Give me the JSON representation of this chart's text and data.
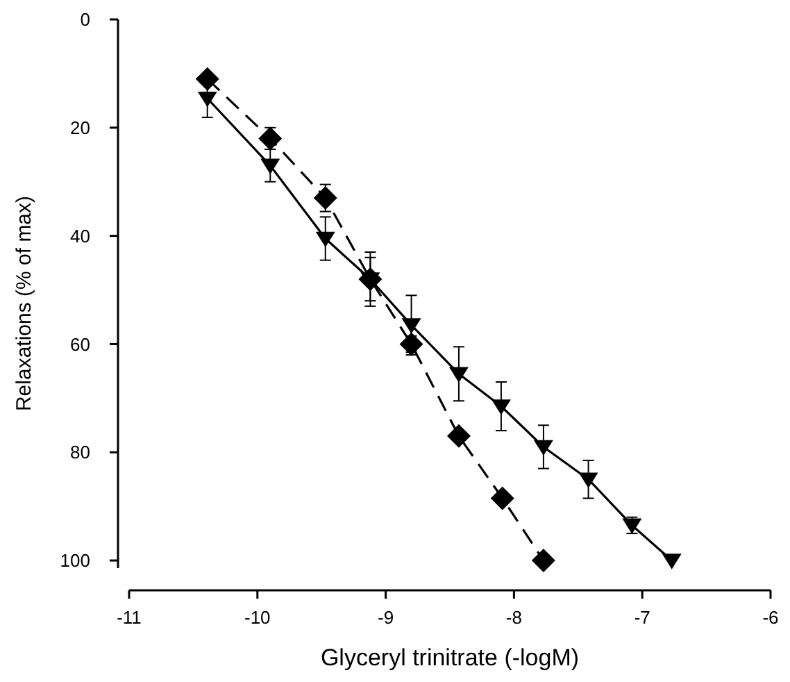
{
  "chart_data": {
    "type": "line",
    "xlabel": "Glyceryl trinitrate (-logM)",
    "ylabel": "Relaxations (% of max)",
    "xlim": [
      -11,
      -6
    ],
    "xticks": [
      -11,
      -10,
      -9,
      -8,
      -7,
      -6
    ],
    "ylim": [
      105,
      0
    ],
    "yticks": [
      0,
      20,
      40,
      60,
      80,
      100
    ],
    "grid": false,
    "series": [
      {
        "color": "#000000",
        "marker": "diamond",
        "line_style": "dashed",
        "x": [
          -10.39,
          -9.9,
          -9.47,
          -9.12,
          -8.8,
          -8.43,
          -8.09,
          -7.77
        ],
        "values": [
          11,
          22,
          33,
          48,
          60,
          77,
          88.5,
          100
        ],
        "errors": [
          1,
          2,
          2.5,
          4,
          1.5,
          1,
          null,
          null
        ]
      },
      {
        "color": "#000000",
        "marker": "triangle",
        "line_style": "solid",
        "x": [
          -10.39,
          -9.9,
          -9.47,
          -9.12,
          -8.8,
          -8.43,
          -8.1,
          -7.77,
          -7.42,
          -7.08,
          -6.77
        ],
        "values": [
          14.6,
          27,
          40.5,
          48,
          56.5,
          65.5,
          71.5,
          79,
          85,
          93.5,
          100
        ],
        "errors": [
          3.5,
          3,
          4,
          5,
          5.5,
          5,
          4.5,
          4,
          3.5,
          1.5,
          null
        ]
      }
    ]
  }
}
